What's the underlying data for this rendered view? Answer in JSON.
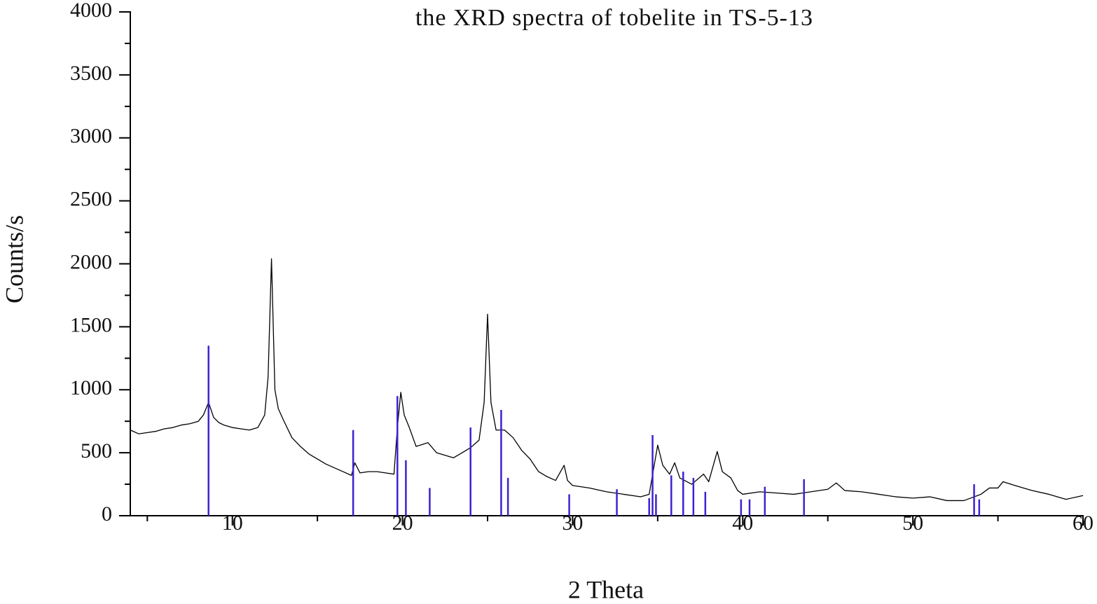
{
  "chart_data": {
    "type": "line",
    "title": "the XRD spectra  of tobelite in TS-5-13",
    "xlabel": "2 Theta",
    "ylabel": "Counts/s",
    "xlim": [
      4,
      60
    ],
    "xticks": [
      10,
      20,
      30,
      40,
      50,
      60
    ],
    "xminorticks": [
      5,
      15,
      25,
      35,
      45,
      55
    ],
    "ylim": [
      0,
      4000
    ],
    "yticks": [
      0,
      500,
      1000,
      1500,
      2000,
      2500,
      3000,
      3500,
      4000
    ],
    "yminorticks": [
      250,
      750,
      1250,
      1750,
      2250,
      2750,
      3250,
      3750
    ],
    "series": [
      {
        "style": "line",
        "color": "#000000",
        "x": [
          4,
          4.5,
          5,
          5.5,
          6,
          6.5,
          7,
          7.5,
          8,
          8.3,
          8.6,
          8.9,
          9.2,
          9.5,
          10,
          10.5,
          11,
          11.5,
          11.9,
          12.1,
          12.3,
          12.5,
          12.7,
          13,
          13.5,
          14,
          14.5,
          15,
          15.5,
          16,
          16.5,
          17,
          17.2,
          17.5,
          18,
          18.5,
          19,
          19.5,
          19.7,
          19.9,
          20.1,
          20.4,
          20.8,
          21.5,
          22,
          22.5,
          23,
          23.5,
          24,
          24.5,
          24.8,
          25,
          25.2,
          25.5,
          26,
          26.5,
          27,
          27.5,
          28,
          28.5,
          29,
          29.5,
          29.7,
          30,
          31,
          32,
          33,
          34,
          34.5,
          35,
          35.3,
          35.7,
          36,
          36.3,
          37,
          37.7,
          38,
          38.5,
          38.8,
          39.3,
          39.7,
          40,
          41,
          42,
          43,
          44,
          45,
          45.5,
          46,
          47,
          48,
          49,
          50,
          51,
          52,
          53,
          54,
          54.5,
          55,
          55.3,
          56,
          57,
          58,
          59,
          60
        ],
        "values": [
          680,
          650,
          660,
          670,
          690,
          700,
          720,
          730,
          750,
          800,
          900,
          780,
          740,
          720,
          700,
          690,
          680,
          700,
          800,
          1100,
          2040,
          1000,
          850,
          760,
          620,
          550,
          490,
          450,
          410,
          380,
          350,
          320,
          420,
          340,
          350,
          350,
          340,
          330,
          700,
          980,
          800,
          700,
          550,
          580,
          500,
          480,
          460,
          500,
          540,
          600,
          900,
          1600,
          900,
          680,
          680,
          620,
          520,
          450,
          350,
          310,
          280,
          400,
          280,
          240,
          220,
          190,
          170,
          150,
          170,
          560,
          400,
          330,
          420,
          300,
          250,
          330,
          270,
          510,
          350,
          300,
          200,
          170,
          190,
          180,
          170,
          190,
          210,
          260,
          200,
          190,
          170,
          150,
          140,
          150,
          120,
          120,
          170,
          220,
          220,
          270,
          240,
          200,
          170,
          130,
          160
        ]
      },
      {
        "style": "stick",
        "color": "#3d22d0",
        "x": [
          8.6,
          17.1,
          19.7,
          20.2,
          21.6,
          24.0,
          25.8,
          26.2,
          29.8,
          32.6,
          34.5,
          34.7,
          34.9,
          35.8,
          36.5,
          37.1,
          37.8,
          39.9,
          40.4,
          41.3,
          43.6,
          53.6,
          53.9
        ],
        "values": [
          1350,
          680,
          950,
          440,
          220,
          700,
          840,
          300,
          170,
          210,
          140,
          640,
          170,
          320,
          350,
          300,
          190,
          130,
          130,
          230,
          290,
          250,
          130
        ]
      }
    ]
  }
}
